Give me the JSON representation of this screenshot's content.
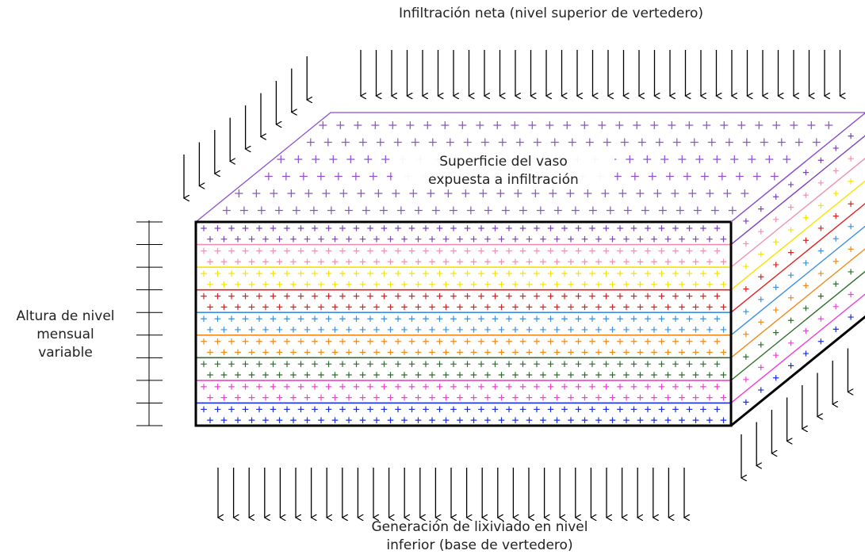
{
  "labels": {
    "top": "Infiltración neta (nivel superior de vertedero)",
    "surface": [
      "Superficie del vaso",
      "expuesta a infiltración"
    ],
    "left": [
      "Altura de nivel",
      "mensual",
      "variable"
    ],
    "bottom": [
      "Generación de lixiviado en nivel",
      "inferior (base de vertedero)"
    ]
  },
  "layers": [
    {
      "color": "#7b3fbf"
    },
    {
      "color": "#f08fb0"
    },
    {
      "color": "#f5e400"
    },
    {
      "color": "#e02020"
    },
    {
      "color": "#3a8fe0"
    },
    {
      "color": "#f08a1c"
    },
    {
      "color": "#2d6e2d"
    },
    {
      "color": "#ef3fd6"
    },
    {
      "color": "#1a2de0"
    }
  ],
  "colors": {
    "surface": "#8a4fd0",
    "outline": "#000000",
    "arrow": "#000000"
  }
}
